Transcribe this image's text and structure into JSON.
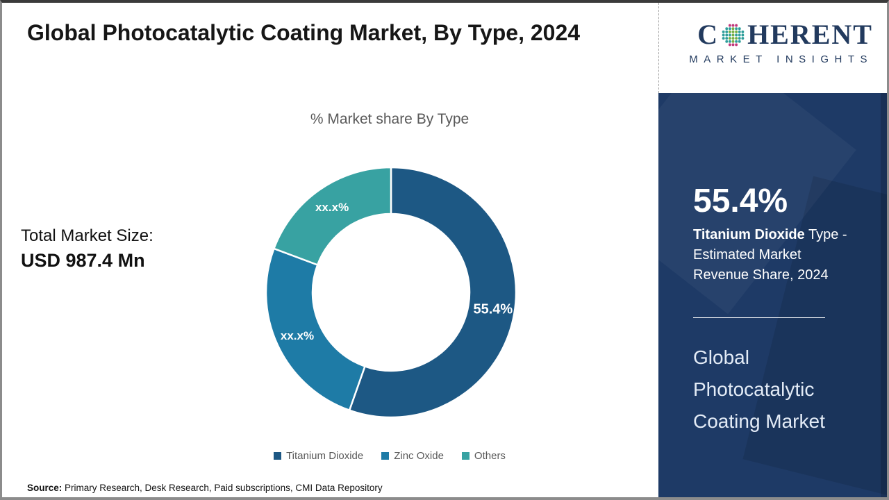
{
  "header": {
    "title": "Global Photocatalytic Coating Market, By Type, 2024",
    "subtitle": "% Market share By Type"
  },
  "logo": {
    "brand_prefix": "C",
    "brand_suffix": "HERENT",
    "tagline": "MARKET INSIGHTS",
    "globe_icon": "dotted-globe",
    "brand_color": "#223a5e"
  },
  "total_market": {
    "label": "Total Market Size:",
    "value": "USD 987.4 Mn"
  },
  "side_panel": {
    "stat_value": "55.4%",
    "stat_desc_bold": "Titanium Dioxide",
    "stat_desc_rest": " Type - Estimated Market Revenue Share, 2024",
    "panel_title": "Global Photocatalytic Coating Market",
    "background_color": "#1e3a66"
  },
  "source": {
    "label": "Source:",
    "text": " Primary Research, Desk Research, Paid subscriptions, CMI Data Repository"
  },
  "chart_data": {
    "type": "pie",
    "donut": true,
    "title": "% Market share By Type",
    "legend_position": "bottom",
    "start_angle_deg": 0,
    "label_text_color": "#ffffff",
    "slices": [
      {
        "name": "Titanium Dioxide",
        "value": 55.4,
        "display": "55.4%",
        "color": "#1d5884"
      },
      {
        "name": "Zinc Oxide",
        "value": 25.3,
        "display": "xx.x%",
        "color": "#1e7ba6"
      },
      {
        "name": "Others",
        "value": 19.3,
        "display": "xx.x%",
        "color": "#38a2a2"
      }
    ]
  }
}
